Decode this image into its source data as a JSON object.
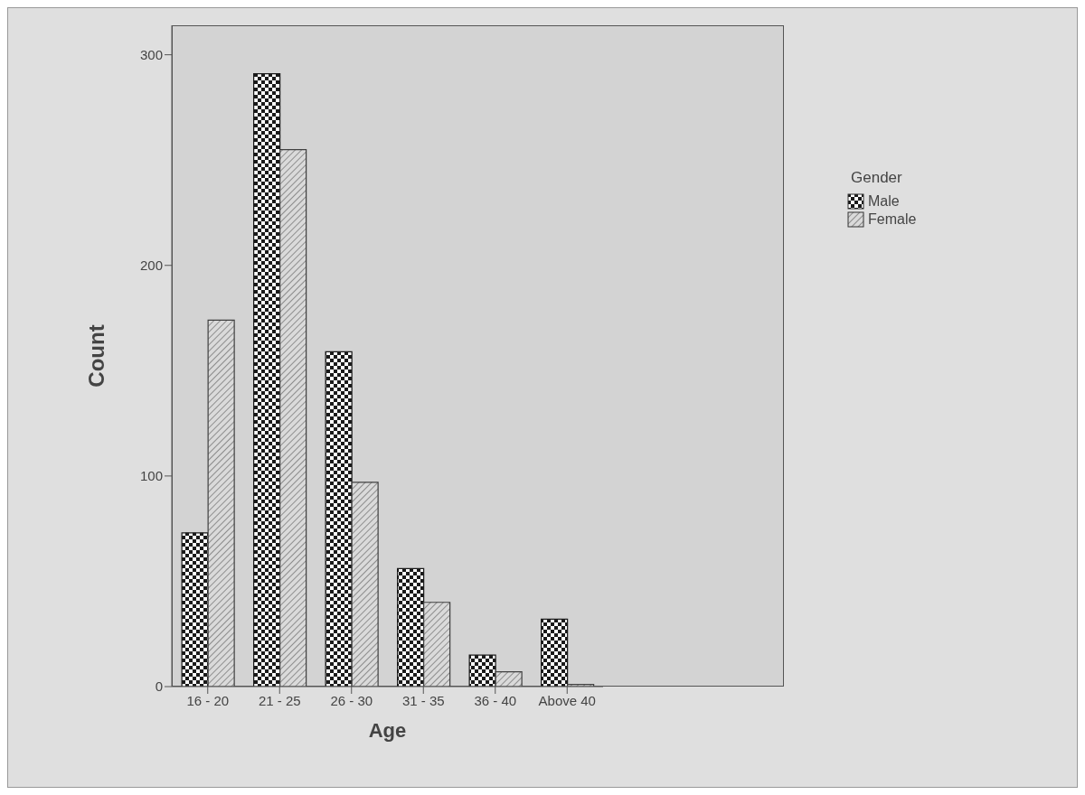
{
  "chart_data": {
    "type": "bar",
    "xlabel": "Age",
    "ylabel": "Count",
    "legend_title": "Gender",
    "categories": [
      "16 - 20",
      "21 - 25",
      "26 - 30",
      "31 - 35",
      "36 - 40",
      "Above 40"
    ],
    "series": [
      {
        "name": "Male",
        "color": "#1a1a1a",
        "values": [
          73,
          291,
          159,
          56,
          15,
          32
        ]
      },
      {
        "name": "Female",
        "color": "#404040",
        "values": [
          174,
          255,
          97,
          40,
          7,
          1
        ]
      }
    ],
    "ylim": [
      0,
      314
    ],
    "yticks": [
      0,
      100,
      200,
      300
    ],
    "grid": false,
    "legend": "right"
  }
}
